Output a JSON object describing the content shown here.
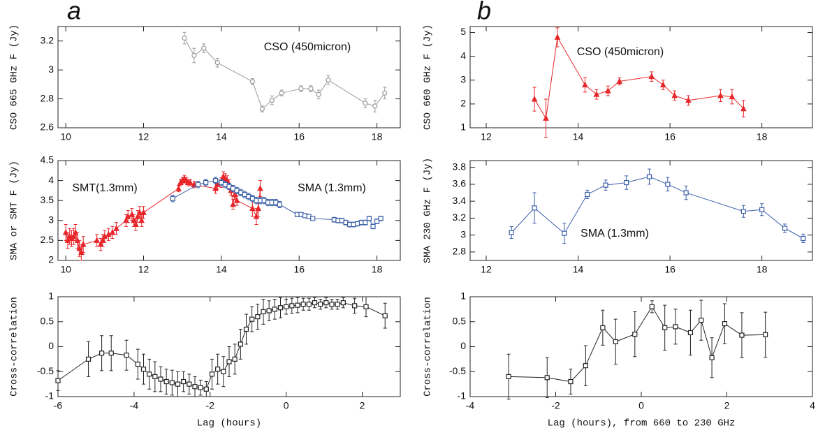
{
  "panel_labels": [
    "a",
    "b"
  ],
  "chart_data": [
    {
      "type": "line",
      "ylabel": "CSO 665 GHz F (Jy)",
      "annotations": [
        "CSO (450micron)"
      ],
      "xlim": [
        9.8,
        18.6
      ],
      "xticks": [
        10,
        12,
        14,
        16,
        18
      ],
      "ylim": [
        2.6,
        3.3
      ],
      "yticks": [
        2.6,
        2.8,
        3,
        3.2
      ],
      "series": [
        {
          "color": "#9a9a9a",
          "marker": "circle",
          "x": [
            13.05,
            13.3,
            13.55,
            13.9,
            14.8,
            15.05,
            15.3,
            15.55,
            16.05,
            16.3,
            16.5,
            16.75,
            17.7,
            17.95,
            18.2
          ],
          "values": [
            3.22,
            3.1,
            3.15,
            3.05,
            2.92,
            2.73,
            2.79,
            2.84,
            2.87,
            2.87,
            2.83,
            2.93,
            2.77,
            2.75,
            2.84
          ],
          "errors": [
            0.04,
            0.05,
            0.03,
            0.03,
            0.02,
            0.02,
            0.03,
            0.02,
            0.02,
            0.02,
            0.03,
            0.03,
            0.03,
            0.04,
            0.04
          ]
        }
      ]
    },
    {
      "type": "line",
      "ylabel": "SMA or SMT F (Jy)",
      "annotations": [
        "SMT(1.3mm)",
        "SMA (1.3mm)"
      ],
      "xlim": [
        9.8,
        18.6
      ],
      "xticks": [
        10,
        12,
        14,
        16,
        18
      ],
      "ylim": [
        2,
        4.5
      ],
      "yticks": [
        2,
        2.5,
        3,
        3.5,
        4,
        4.5
      ],
      "series": [
        {
          "color": "#e8262a",
          "marker": "triangle",
          "x": [
            10.0,
            10.05,
            10.1,
            10.15,
            10.2,
            10.25,
            10.3,
            10.35,
            10.4,
            10.45,
            10.8,
            10.9,
            10.95,
            11.0,
            11.1,
            11.2,
            11.3,
            11.55,
            11.6,
            11.7,
            11.75,
            11.8,
            11.85,
            11.9,
            11.95,
            12.0,
            12.9,
            12.95,
            13.0,
            13.05,
            13.1,
            13.15,
            13.2,
            13.3,
            13.85,
            13.9,
            14.0,
            14.05,
            14.1,
            14.15,
            14.2,
            14.25,
            14.3,
            14.35,
            14.4,
            14.8,
            14.9,
            14.95,
            15.0
          ],
          "values": [
            2.7,
            2.5,
            2.6,
            2.55,
            2.6,
            2.7,
            2.5,
            2.3,
            2.2,
            2.4,
            2.5,
            2.4,
            2.5,
            2.6,
            2.65,
            2.7,
            2.8,
            3.0,
            3.1,
            3.15,
            3.0,
            2.9,
            3.1,
            3.2,
            3.0,
            3.2,
            3.8,
            3.95,
            4.0,
            4.05,
            4.0,
            3.95,
            3.95,
            3.9,
            3.8,
            3.9,
            3.95,
            4.1,
            4.05,
            4.0,
            3.9,
            3.75,
            3.4,
            3.65,
            3.5,
            3.3,
            3.1,
            3.3,
            3.8
          ],
          "errors": [
            0.2,
            0.2,
            0.2,
            0.2,
            0.2,
            0.2,
            0.2,
            0.2,
            0.2,
            0.2,
            0.15,
            0.15,
            0.15,
            0.15,
            0.15,
            0.15,
            0.15,
            0.15,
            0.15,
            0.15,
            0.15,
            0.15,
            0.15,
            0.15,
            0.15,
            0.15,
            0.08,
            0.08,
            0.08,
            0.08,
            0.08,
            0.08,
            0.08,
            0.08,
            0.12,
            0.12,
            0.12,
            0.12,
            0.12,
            0.12,
            0.12,
            0.12,
            0.12,
            0.12,
            0.12,
            0.2,
            0.2,
            0.2,
            0.2
          ]
        },
        {
          "color": "#3a5fa8",
          "marker": "square",
          "x": [
            12.75,
            13.4,
            13.6,
            13.85,
            14.0,
            14.1,
            14.2,
            14.3,
            14.4,
            14.5,
            14.6,
            14.7,
            14.8,
            14.9,
            15.0,
            15.1,
            15.2,
            15.3,
            15.4,
            15.5,
            15.95,
            16.05,
            16.15,
            16.25,
            16.35,
            16.9,
            17.0,
            17.1,
            17.2,
            17.3,
            17.4,
            17.5,
            17.6,
            17.7,
            17.8,
            17.9,
            18.0,
            18.1
          ],
          "values": [
            3.55,
            3.9,
            3.95,
            4.0,
            3.95,
            3.9,
            3.85,
            3.8,
            3.75,
            3.7,
            3.65,
            3.6,
            3.55,
            3.5,
            3.5,
            3.5,
            3.45,
            3.45,
            3.45,
            3.4,
            3.15,
            3.15,
            3.12,
            3.1,
            3.05,
            3.02,
            3.0,
            3.0,
            2.95,
            2.9,
            2.9,
            2.92,
            2.95,
            2.95,
            3.05,
            2.85,
            2.98,
            3.05
          ],
          "errors": [
            0.08,
            0.08,
            0.08,
            0.08,
            0.08,
            0.08,
            0.08,
            0.08,
            0.08,
            0.08,
            0.08,
            0.08,
            0.08,
            0.08,
            0.08,
            0.08,
            0.08,
            0.08,
            0.08,
            0.08,
            0.05,
            0.05,
            0.05,
            0.05,
            0.05,
            0.06,
            0.06,
            0.06,
            0.06,
            0.06,
            0.06,
            0.06,
            0.06,
            0.06,
            0.06,
            0.06,
            0.06,
            0.06
          ]
        }
      ]
    },
    {
      "type": "line",
      "ylabel": "Cross-correlation",
      "xlabel": "Lag (hours)",
      "xlim": [
        -6,
        3
      ],
      "xticks": [
        -6,
        -4,
        -2,
        0,
        2
      ],
      "ylim": [
        -1,
        1
      ],
      "yticks": [
        -1,
        -0.5,
        0,
        0.5,
        1
      ],
      "series": [
        {
          "color": "#222222",
          "marker": "square",
          "x": [
            -6,
            -5.2,
            -4.85,
            -4.6,
            -4.2,
            -3.9,
            -3.75,
            -3.6,
            -3.45,
            -3.3,
            -3.15,
            -3.0,
            -2.85,
            -2.7,
            -2.55,
            -2.4,
            -2.25,
            -2.1,
            -1.95,
            -1.8,
            -1.65,
            -1.5,
            -1.35,
            -1.2,
            -1.05,
            -0.9,
            -0.75,
            -0.6,
            -0.45,
            -0.3,
            -0.15,
            0,
            0.15,
            0.3,
            0.45,
            0.6,
            0.75,
            0.9,
            1.05,
            1.2,
            1.35,
            1.5,
            1.8,
            2.1,
            2.6
          ],
          "values": [
            -0.68,
            -0.25,
            -0.13,
            -0.13,
            -0.17,
            -0.35,
            -0.45,
            -0.55,
            -0.6,
            -0.65,
            -0.7,
            -0.72,
            -0.75,
            -0.7,
            -0.75,
            -0.8,
            -0.82,
            -0.85,
            -0.55,
            -0.45,
            -0.5,
            -0.3,
            -0.25,
            0.05,
            0.35,
            0.55,
            0.6,
            0.7,
            0.72,
            0.75,
            0.78,
            0.8,
            0.82,
            0.83,
            0.85,
            0.85,
            0.88,
            0.85,
            0.88,
            0.85,
            0.85,
            0.88,
            0.82,
            0.8,
            0.62
          ],
          "errors": [
            0.2,
            0.35,
            0.35,
            0.35,
            0.3,
            0.3,
            0.3,
            0.3,
            0.3,
            0.25,
            0.25,
            0.25,
            0.25,
            0.2,
            0.2,
            0.2,
            0.15,
            0.15,
            0.3,
            0.3,
            0.3,
            0.3,
            0.3,
            0.3,
            0.3,
            0.25,
            0.25,
            0.25,
            0.2,
            0.2,
            0.2,
            0.15,
            0.15,
            0.15,
            0.12,
            0.12,
            0.1,
            0.1,
            0.1,
            0.1,
            0.1,
            0.1,
            0.15,
            0.2,
            0.25
          ]
        }
      ]
    },
    {
      "type": "line",
      "ylabel": "CSO 660 GHz F (Jy)",
      "annotations": [
        "CSO (450micron)"
      ],
      "xlim": [
        11.65,
        19.1
      ],
      "xticks": [
        12,
        14,
        16,
        18
      ],
      "ylim": [
        1,
        5.25
      ],
      "yticks": [
        1,
        2,
        3,
        4,
        5
      ],
      "series": [
        {
          "color": "#e8262a",
          "marker": "triangle",
          "x": [
            13.05,
            13.3,
            13.55,
            14.15,
            14.4,
            14.65,
            14.9,
            15.6,
            15.85,
            16.1,
            16.4,
            17.1,
            17.35,
            17.6
          ],
          "values": [
            2.2,
            1.4,
            4.8,
            2.8,
            2.4,
            2.55,
            2.95,
            3.15,
            2.8,
            2.35,
            2.15,
            2.35,
            2.3,
            1.8
          ],
          "errors": [
            0.5,
            0.8,
            0.4,
            0.3,
            0.2,
            0.2,
            0.15,
            0.2,
            0.2,
            0.2,
            0.2,
            0.25,
            0.3,
            0.35
          ]
        }
      ]
    },
    {
      "type": "line",
      "ylabel": "SMA 230 GHz F (Jy)",
      "annotations": [
        "SMA (1.3mm)"
      ],
      "xlim": [
        11.65,
        19.1
      ],
      "xticks": [
        12,
        14,
        16,
        18
      ],
      "ylim": [
        2.7,
        3.88
      ],
      "yticks": [
        2.8,
        3,
        3.2,
        3.4,
        3.6,
        3.8
      ],
      "series": [
        {
          "color": "#3a5fa8",
          "marker": "square",
          "x": [
            12.55,
            13.05,
            13.7,
            14.2,
            14.6,
            15.05,
            15.55,
            15.95,
            16.35,
            17.6,
            18.0,
            18.5,
            18.9
          ],
          "values": [
            3.03,
            3.32,
            3.02,
            3.48,
            3.59,
            3.62,
            3.69,
            3.6,
            3.5,
            3.28,
            3.3,
            3.08,
            2.96
          ],
          "errors": [
            0.07,
            0.18,
            0.12,
            0.05,
            0.06,
            0.08,
            0.09,
            0.08,
            0.08,
            0.07,
            0.07,
            0.05,
            0.05
          ]
        }
      ]
    },
    {
      "type": "line",
      "ylabel": "Cross-correlation",
      "xlabel": "Lag (hours), from 660 to 230 GHz",
      "xlim": [
        -4,
        4
      ],
      "xticks": [
        -4,
        -2,
        0,
        2,
        4
      ],
      "ylim": [
        -1,
        1
      ],
      "yticks": [
        -1,
        -0.5,
        0,
        0.5,
        1
      ],
      "series": [
        {
          "color": "#222222",
          "marker": "square",
          "x": [
            -3.1,
            -2.2,
            -1.65,
            -1.3,
            -0.9,
            -0.6,
            -0.15,
            0.25,
            0.55,
            0.8,
            1.15,
            1.4,
            1.65,
            1.95,
            2.35,
            2.9
          ],
          "values": [
            -0.6,
            -0.62,
            -0.7,
            -0.38,
            0.38,
            0.1,
            0.25,
            0.8,
            0.38,
            0.4,
            0.28,
            0.53,
            -0.22,
            0.46,
            0.23,
            0.24
          ],
          "errors": [
            0.45,
            0.4,
            0.25,
            0.4,
            0.35,
            0.45,
            0.45,
            0.12,
            0.45,
            0.35,
            0.45,
            0.4,
            0.4,
            0.4,
            0.45,
            0.45
          ]
        }
      ]
    }
  ]
}
